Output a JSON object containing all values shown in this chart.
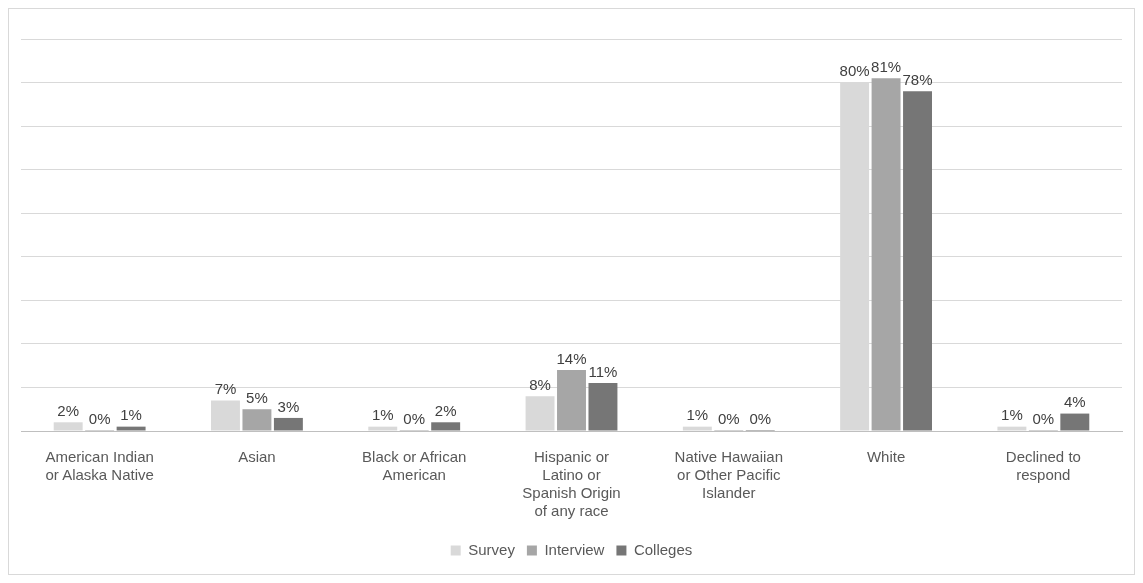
{
  "chart_data": {
    "type": "bar",
    "categories": [
      "American Indian or Alaska Native",
      "Asian",
      "Black or African American",
      "Hispanic or Latino or Spanish Origin of any race",
      "Native Hawaiian or Other Pacific Islander",
      "White",
      "Declined to respond"
    ],
    "series": [
      {
        "name": "Survey",
        "color": "#d9d9d9",
        "values": [
          2,
          7,
          1,
          8,
          1,
          80,
          1
        ],
        "value_labels": [
          "2%",
          "7%",
          "1%",
          "8%",
          "1%",
          "80%",
          "1%"
        ]
      },
      {
        "name": "Interview",
        "color": "#a6a6a6",
        "values": [
          0,
          5,
          0,
          14,
          0,
          81,
          0
        ],
        "value_labels": [
          "0%",
          "5%",
          "0%",
          "14%",
          "0%",
          "81%",
          "0%"
        ]
      },
      {
        "name": "Colleges",
        "color": "#767676",
        "values": [
          1,
          3,
          2,
          11,
          0,
          78,
          4
        ],
        "value_labels": [
          "1%",
          "3%",
          "2%",
          "11%",
          "0%",
          "78%",
          "4%"
        ]
      }
    ],
    "ylim": [
      0,
      90
    ],
    "yticks": [
      {
        "value": 0,
        "label": null
      },
      {
        "value": 10,
        "label": null
      },
      {
        "value": 20,
        "label": null
      },
      {
        "value": 30,
        "label": null
      },
      {
        "value": 40,
        "label": null
      },
      {
        "value": 50,
        "label": null
      },
      {
        "value": 60,
        "label": null
      },
      {
        "value": 70,
        "label": null
      },
      {
        "value": 80,
        "label": null
      },
      {
        "value": 90,
        "label": null
      }
    ],
    "grid": "y",
    "legend": "bottom",
    "tick_labels": "x"
  }
}
